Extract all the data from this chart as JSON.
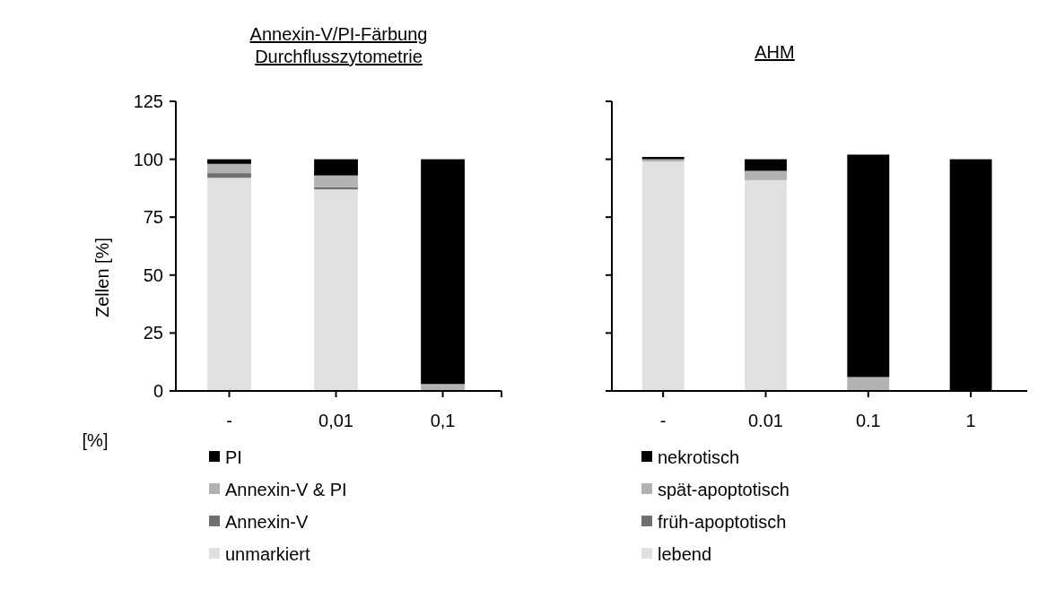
{
  "chart_data": [
    {
      "type": "bar",
      "stacked": true,
      "title": "Annexin-V/PI-Färbung\nDurchflusszytometrie",
      "ylabel": "Zellen [%]",
      "xlabel": "[%]",
      "categories": [
        "-",
        "0,01",
        "0,1"
      ],
      "ylim": [
        0,
        125
      ],
      "yticks": [
        0,
        25,
        50,
        75,
        100,
        125
      ],
      "legend": "bottom",
      "series": [
        {
          "name": "unmarkiert",
          "color": "#e0e0e0",
          "values": [
            92,
            87,
            0
          ]
        },
        {
          "name": "Annexin-V",
          "color": "#6f6f6f",
          "values": [
            2,
            1,
            0
          ]
        },
        {
          "name": "Annexin-V & PI",
          "color": "#b2b2b2",
          "values": [
            4,
            5,
            3
          ]
        },
        {
          "name": "PI",
          "color": "#000000",
          "values": [
            2,
            7,
            97
          ]
        }
      ]
    },
    {
      "type": "bar",
      "stacked": true,
      "title": "AHM",
      "categories": [
        "-",
        "0.01",
        "0.1",
        "1"
      ],
      "ylim": [
        0,
        125
      ],
      "yticks": [
        0,
        25,
        50,
        75,
        100,
        125
      ],
      "tick_labels": "x",
      "legend": "bottom",
      "series": [
        {
          "name": "lebend",
          "color": "#e0e0e0",
          "values": [
            99,
            91,
            0,
            0
          ]
        },
        {
          "name": "früh-apoptotisch",
          "color": "#6f6f6f",
          "values": [
            0,
            0,
            0,
            0
          ]
        },
        {
          "name": "spät-apoptotisch",
          "color": "#b2b2b2",
          "values": [
            1,
            4,
            6,
            0
          ]
        },
        {
          "name": "nekrotisch",
          "color": "#000000",
          "values": [
            1,
            5,
            96,
            100
          ]
        }
      ]
    }
  ]
}
